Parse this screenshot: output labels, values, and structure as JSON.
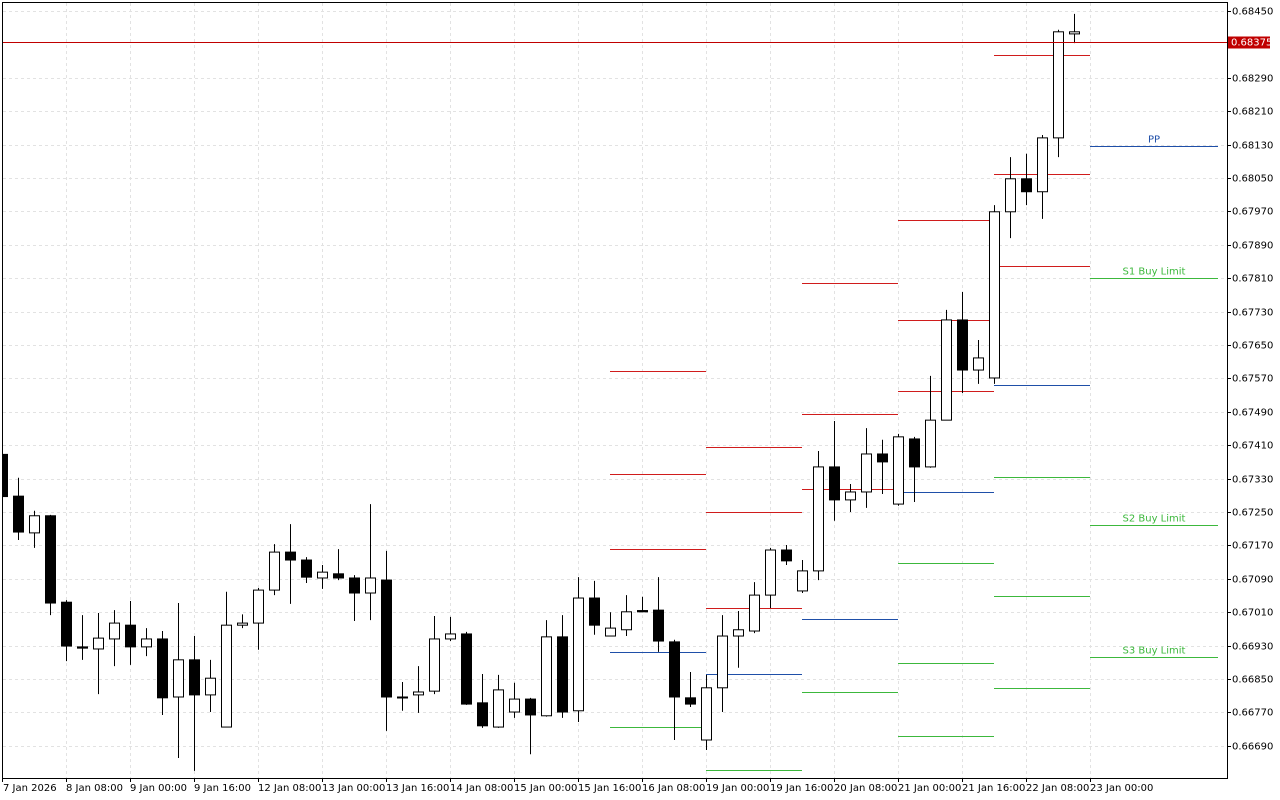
{
  "chart_data": {
    "type": "candlestick",
    "categories": [
      "7 Jan 2026",
      null,
      null,
      null,
      "8 Jan 08:00",
      null,
      null,
      null,
      "9 Jan 00:00",
      null,
      null,
      null,
      "9 Jan 16:00",
      null,
      null,
      null,
      "12 Jan 08:00",
      null,
      null,
      null,
      "13 Jan 00:00",
      null,
      null,
      null,
      "13 Jan 16:00",
      null,
      null,
      null,
      "14 Jan 08:00",
      null,
      null,
      null,
      "15 Jan 00:00",
      null,
      null,
      null,
      "15 Jan 16:00",
      null,
      null,
      null,
      "16 Jan 08:00",
      null,
      null,
      null,
      "19 Jan 00:00",
      null,
      null,
      null,
      "19 Jan 16:00",
      null,
      null,
      null,
      "20 Jan 08:00",
      null,
      null,
      null,
      "21 Jan 00:00",
      null,
      null,
      null,
      "21 Jan 16:00",
      null,
      null,
      null,
      "22 Jan 08:00",
      null,
      null,
      null,
      "23 Jan 00:00"
    ],
    "open": [
      0.67388,
      0.67288,
      0.672,
      0.67241,
      0.67034,
      0.66927,
      0.66922,
      0.66946,
      0.66979,
      0.66927,
      0.66946,
      0.66807,
      0.66896,
      0.66812,
      0.66735,
      0.66979,
      0.66984,
      0.67063,
      0.67154,
      0.67135,
      0.67092,
      0.67102,
      0.67092,
      0.67056,
      0.67087,
      0.66807,
      0.66812,
      0.66821,
      0.66946,
      0.66958,
      0.66793,
      0.66735,
      0.66771,
      0.66802,
      0.66762,
      0.66951,
      0.66774,
      0.67044,
      0.66953,
      0.66968,
      0.67014,
      0.67015,
      0.66939,
      0.66805,
      0.66704,
      0.66829,
      0.66953,
      0.66965,
      0.67051,
      0.67159,
      0.67061,
      0.67109,
      0.67358,
      0.67279,
      0.67298,
      0.67389,
      0.67269,
      0.67425,
      0.67358,
      0.6747,
      0.6771,
      0.6759,
      0.67571,
      0.67969,
      0.68048,
      0.68017,
      0.68146,
      0.68395,
      null
    ],
    "high": [
      0.6739,
      0.67332,
      0.67253,
      0.67243,
      0.67039,
      0.67003,
      0.67008,
      0.67015,
      0.67037,
      0.66972,
      0.66965,
      0.67032,
      0.66953,
      0.66896,
      0.67059,
      0.67005,
      0.67068,
      0.67173,
      0.67221,
      0.67142,
      0.67123,
      0.67161,
      0.67099,
      0.67269,
      0.67157,
      0.66843,
      0.66881,
      0.67001,
      0.66999,
      0.66963,
      0.66862,
      0.6686,
      0.66841,
      0.66805,
      0.66991,
      0.67003,
      0.67094,
      0.67085,
      0.6701,
      0.67051,
      0.67047,
      0.67094,
      0.66944,
      0.66867,
      0.6686,
      0.67003,
      0.67013,
      0.67082,
      0.67164,
      0.67171,
      0.67135,
      0.67396,
      0.67468,
      0.67317,
      0.67451,
      0.67423,
      0.67437,
      0.6743,
      0.67576,
      0.67734,
      0.67777,
      0.67662,
      0.67985,
      0.681,
      0.68108,
      0.68153,
      0.68405,
      0.68443,
      null
    ],
    "low": [
      0.67285,
      0.67183,
      0.67164,
      0.67003,
      0.66893,
      0.66896,
      0.66814,
      0.66881,
      0.66884,
      0.66905,
      0.66764,
      0.66661,
      0.6663,
      0.66771,
      0.66735,
      0.66972,
      0.6692,
      0.67051,
      0.6703,
      0.6708,
      0.67066,
      0.67087,
      0.66989,
      0.66991,
      0.66726,
      0.66774,
      0.66769,
      0.66814,
      0.66941,
      0.66788,
      0.66733,
      0.66733,
      0.66757,
      0.6667,
      0.6676,
      0.66757,
      0.66747,
      0.66956,
      0.66953,
      0.66953,
      0.6701,
      0.66915,
      0.66704,
      0.66783,
      0.6668,
      0.66771,
      0.66877,
      0.6696,
      0.6702,
      0.67123,
      0.67056,
      0.67087,
      0.67229,
      0.6725,
      0.6726,
      0.67293,
      0.67265,
      0.67274,
      0.67356,
      0.6747,
      0.67535,
      0.67557,
      0.67557,
      0.67906,
      0.67985,
      0.67952,
      0.681,
      0.68373,
      null
    ],
    "close": [
      0.67287,
      0.67202,
      0.67241,
      0.67032,
      0.66929,
      0.66924,
      0.66948,
      0.66984,
      0.66927,
      0.66946,
      0.66805,
      0.66896,
      0.66812,
      0.66852,
      0.66979,
      0.66984,
      0.67063,
      0.67154,
      0.67135,
      0.67094,
      0.67106,
      0.67092,
      0.67056,
      0.67092,
      0.66807,
      0.66806,
      0.66819,
      0.66946,
      0.66958,
      0.6679,
      0.66738,
      0.66824,
      0.66802,
      0.66764,
      0.66951,
      0.66771,
      0.67044,
      0.66979,
      0.66972,
      0.67011,
      0.67011,
      0.66941,
      0.66807,
      0.6679,
      0.66829,
      0.66953,
      0.66968,
      0.67051,
      0.67159,
      0.67133,
      0.67109,
      0.67358,
      0.67279,
      0.67298,
      0.67389,
      0.6737,
      0.6743,
      0.67358,
      0.6747,
      0.6771,
      0.6759,
      0.67619,
      0.67969,
      0.68048,
      0.68017,
      0.68146,
      0.684,
      0.684,
      null
    ],
    "up_color": "#ffffff",
    "down_color": "#000000",
    "ylim": [
      0.66613,
      0.68469
    ],
    "yticks": [
      {
        "value": 0.6669,
        "label": "0.66690"
      },
      {
        "value": 0.6677,
        "label": "0.66770"
      },
      {
        "value": 0.6685,
        "label": "0.66850"
      },
      {
        "value": 0.6693,
        "label": "0.66930"
      },
      {
        "value": 0.6701,
        "label": "0.67010"
      },
      {
        "value": 0.6709,
        "label": "0.67090"
      },
      {
        "value": 0.6717,
        "label": "0.67170"
      },
      {
        "value": 0.6725,
        "label": "0.67250"
      },
      {
        "value": 0.6733,
        "label": "0.67330"
      },
      {
        "value": 0.6741,
        "label": "0.67410"
      },
      {
        "value": 0.6749,
        "label": "0.67490"
      },
      {
        "value": 0.6757,
        "label": "0.67570"
      },
      {
        "value": 0.6765,
        "label": "0.67650"
      },
      {
        "value": 0.6773,
        "label": "0.67730"
      },
      {
        "value": 0.6781,
        "label": "0.67810"
      },
      {
        "value": 0.6789,
        "label": "0.67890"
      },
      {
        "value": 0.6797,
        "label": "0.67970"
      },
      {
        "value": 0.6805,
        "label": "0.68050"
      },
      {
        "value": 0.6813,
        "label": "0.68130"
      },
      {
        "value": 0.6821,
        "label": "0.68210"
      },
      {
        "value": 0.6829,
        "label": "0.68290"
      },
      {
        "value": 0.6845,
        "label": "0.68450"
      }
    ],
    "grid": true,
    "current_price": 0.68375,
    "current_price_color": "#c00000",
    "level_colors": {
      "resistance": "#d01c1c",
      "pivot": "#1f4fa8",
      "support": "#3cb83c"
    },
    "levels": [
      {
        "start": 38,
        "end": 44,
        "lines": [
          {
            "kind": "resistance",
            "value": 0.67588
          },
          {
            "kind": "resistance",
            "value": 0.67341
          },
          {
            "kind": "resistance",
            "value": 0.67161
          },
          {
            "kind": "pivot",
            "value": 0.66915
          },
          {
            "kind": "support",
            "value": 0.66735
          }
        ]
      },
      {
        "start": 44,
        "end": 50,
        "lines": [
          {
            "kind": "resistance",
            "value": 0.67406
          },
          {
            "kind": "resistance",
            "value": 0.6725
          },
          {
            "kind": "resistance",
            "value": 0.6702
          },
          {
            "kind": "pivot",
            "value": 0.66862
          },
          {
            "kind": "support",
            "value": 0.66632
          }
        ]
      },
      {
        "start": 50,
        "end": 56,
        "lines": [
          {
            "kind": "resistance",
            "value": 0.67799
          },
          {
            "kind": "resistance",
            "value": 0.67485
          },
          {
            "kind": "resistance",
            "value": 0.67305
          },
          {
            "kind": "pivot",
            "value": 0.66994
          },
          {
            "kind": "support",
            "value": 0.66819
          }
        ]
      },
      {
        "start": 56,
        "end": 62,
        "lines": [
          {
            "kind": "resistance",
            "value": 0.67949
          },
          {
            "kind": "resistance",
            "value": 0.6771
          },
          {
            "kind": "resistance",
            "value": 0.6754
          },
          {
            "kind": "pivot",
            "value": 0.67298
          },
          {
            "kind": "support",
            "value": 0.67128
          },
          {
            "kind": "support",
            "value": 0.66889
          },
          {
            "kind": "support",
            "value": 0.66714
          }
        ]
      },
      {
        "start": 62,
        "end": 68,
        "lines": [
          {
            "kind": "resistance",
            "value": 0.68345
          },
          {
            "kind": "resistance",
            "value": 0.6806
          },
          {
            "kind": "resistance",
            "value": 0.67839
          },
          {
            "kind": "pivot",
            "value": 0.67554
          },
          {
            "kind": "support",
            "value": 0.67334
          },
          {
            "kind": "support",
            "value": 0.67049
          },
          {
            "kind": "support",
            "value": 0.66829
          }
        ]
      },
      {
        "start": 68,
        "end": 76,
        "lines": [
          {
            "kind": "pivot",
            "value": 0.68127,
            "label": "PP"
          },
          {
            "kind": "support",
            "value": 0.67811,
            "label": "S1 Buy Limit"
          },
          {
            "kind": "support",
            "value": 0.67219,
            "label": "S2 Buy Limit"
          },
          {
            "kind": "support",
            "value": 0.66903,
            "label": "S3 Buy Limit"
          }
        ]
      }
    ]
  }
}
